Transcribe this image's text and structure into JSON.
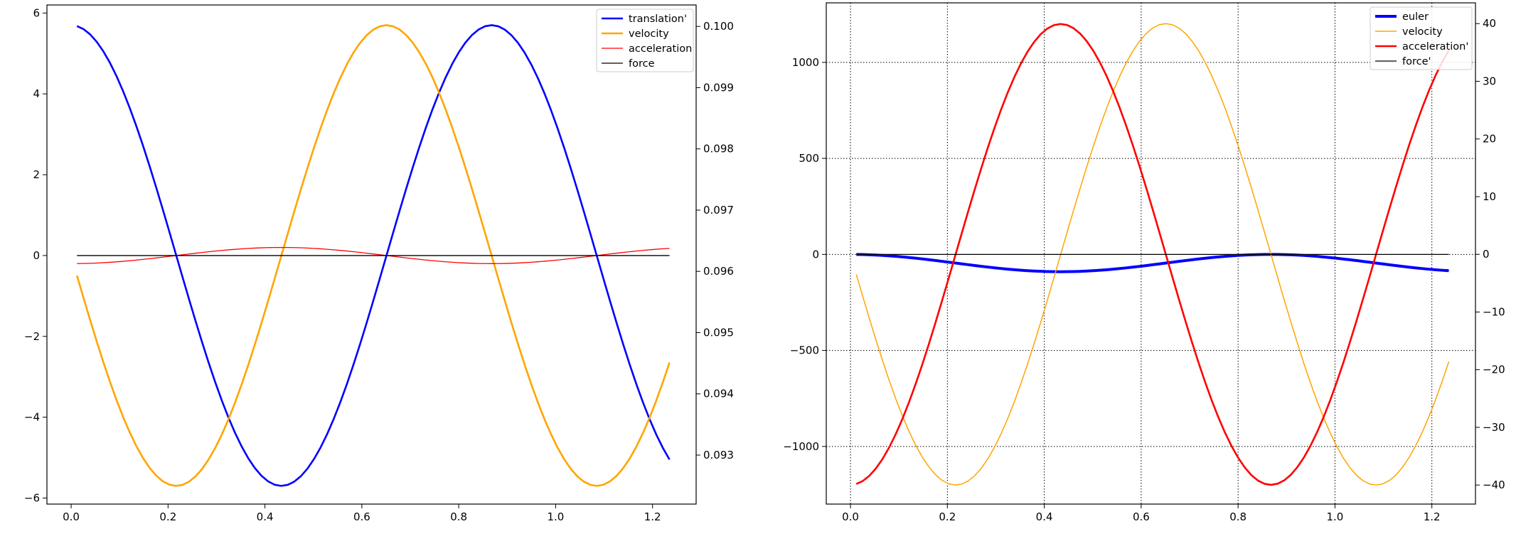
{
  "chart_data": [
    {
      "type": "line",
      "title": "",
      "xlabel": "",
      "ylabel": "",
      "y2label": "",
      "xlim": [
        -0.05,
        1.29
      ],
      "ylim": [
        -6.15,
        6.2
      ],
      "y2lim": [
        0.0922,
        0.10035
      ],
      "x_ticks": [
        0.0,
        0.2,
        0.4,
        0.6,
        0.8,
        1.0,
        1.2
      ],
      "x_tick_labels": [
        "0.0",
        "0.2",
        "0.4",
        "0.6",
        "0.8",
        "1.0",
        "1.2"
      ],
      "y_ticks": [
        -6,
        -4,
        -2,
        0,
        2,
        4,
        6
      ],
      "y_tick_labels": [
        "−6",
        "−4",
        "−2",
        "0",
        "2",
        "4",
        "6"
      ],
      "y2_ticks": [
        0.093,
        0.094,
        0.095,
        0.096,
        0.097,
        0.098,
        0.099,
        0.1
      ],
      "y2_tick_labels": [
        "0.093",
        "0.094",
        "0.095",
        "0.096",
        "0.097",
        "0.098",
        "0.099",
        "0.100"
      ],
      "grid": false,
      "legend_position": "top-right",
      "series": [
        {
          "name": "translation'",
          "color": "#0000ff",
          "axis": "left",
          "formula": "5.7*cos(7.24*t)",
          "t_range": [
            0.012,
            1.235
          ]
        },
        {
          "name": "velocity",
          "color": "#ffa500",
          "axis": "left",
          "formula": "-5.7*sin(7.24*t)",
          "t_range": [
            0.012,
            1.235
          ]
        },
        {
          "name": "acceleration",
          "color": "#ff0000",
          "axis": "left",
          "formula": "-0.2*cos(7.24*t)",
          "t_range": [
            0.012,
            1.235
          ]
        },
        {
          "name": "force",
          "color": "#000000",
          "axis": "left",
          "formula": "0",
          "t_range": [
            0.012,
            1.235
          ]
        }
      ]
    },
    {
      "type": "line",
      "title": "",
      "xlabel": "",
      "ylabel": "",
      "y2label": "",
      "xlim": [
        -0.05,
        1.29
      ],
      "ylim": [
        -1300,
        1310
      ],
      "y2lim": [
        -43.3,
        43.6
      ],
      "x_ticks": [
        0.0,
        0.2,
        0.4,
        0.6,
        0.8,
        1.0,
        1.2
      ],
      "x_tick_labels": [
        "0.0",
        "0.2",
        "0.4",
        "0.6",
        "0.8",
        "1.0",
        "1.2"
      ],
      "y_ticks": [
        -1000,
        -500,
        0,
        500,
        1000
      ],
      "y_tick_labels": [
        "−1000",
        "−500",
        "0",
        "500",
        "1000"
      ],
      "y2_ticks": [
        -40,
        -30,
        -20,
        -10,
        0,
        10,
        20,
        30,
        40
      ],
      "y2_tick_labels": [
        "−40",
        "−30",
        "−20",
        "−10",
        "0",
        "10",
        "20",
        "30",
        "40"
      ],
      "grid": true,
      "legend_position": "top-right",
      "series": [
        {
          "name": "euler",
          "color": "#0000ff",
          "axis": "left",
          "formula": "-45*(1-cos(7.24*t))",
          "t_range": [
            0.012,
            1.235
          ]
        },
        {
          "name": "velocity",
          "color": "#ffa500",
          "axis": "right",
          "formula": "-40*sin(7.24*t)",
          "t_range": [
            0.012,
            1.235
          ]
        },
        {
          "name": "acceleration'",
          "color": "#ff0000",
          "axis": "left",
          "formula": "-1200*cos(7.24*t)",
          "t_range": [
            0.012,
            1.235
          ]
        },
        {
          "name": "force'",
          "color": "#000000",
          "axis": "left",
          "formula": "0",
          "t_range": [
            0.012,
            1.235
          ]
        }
      ]
    }
  ]
}
